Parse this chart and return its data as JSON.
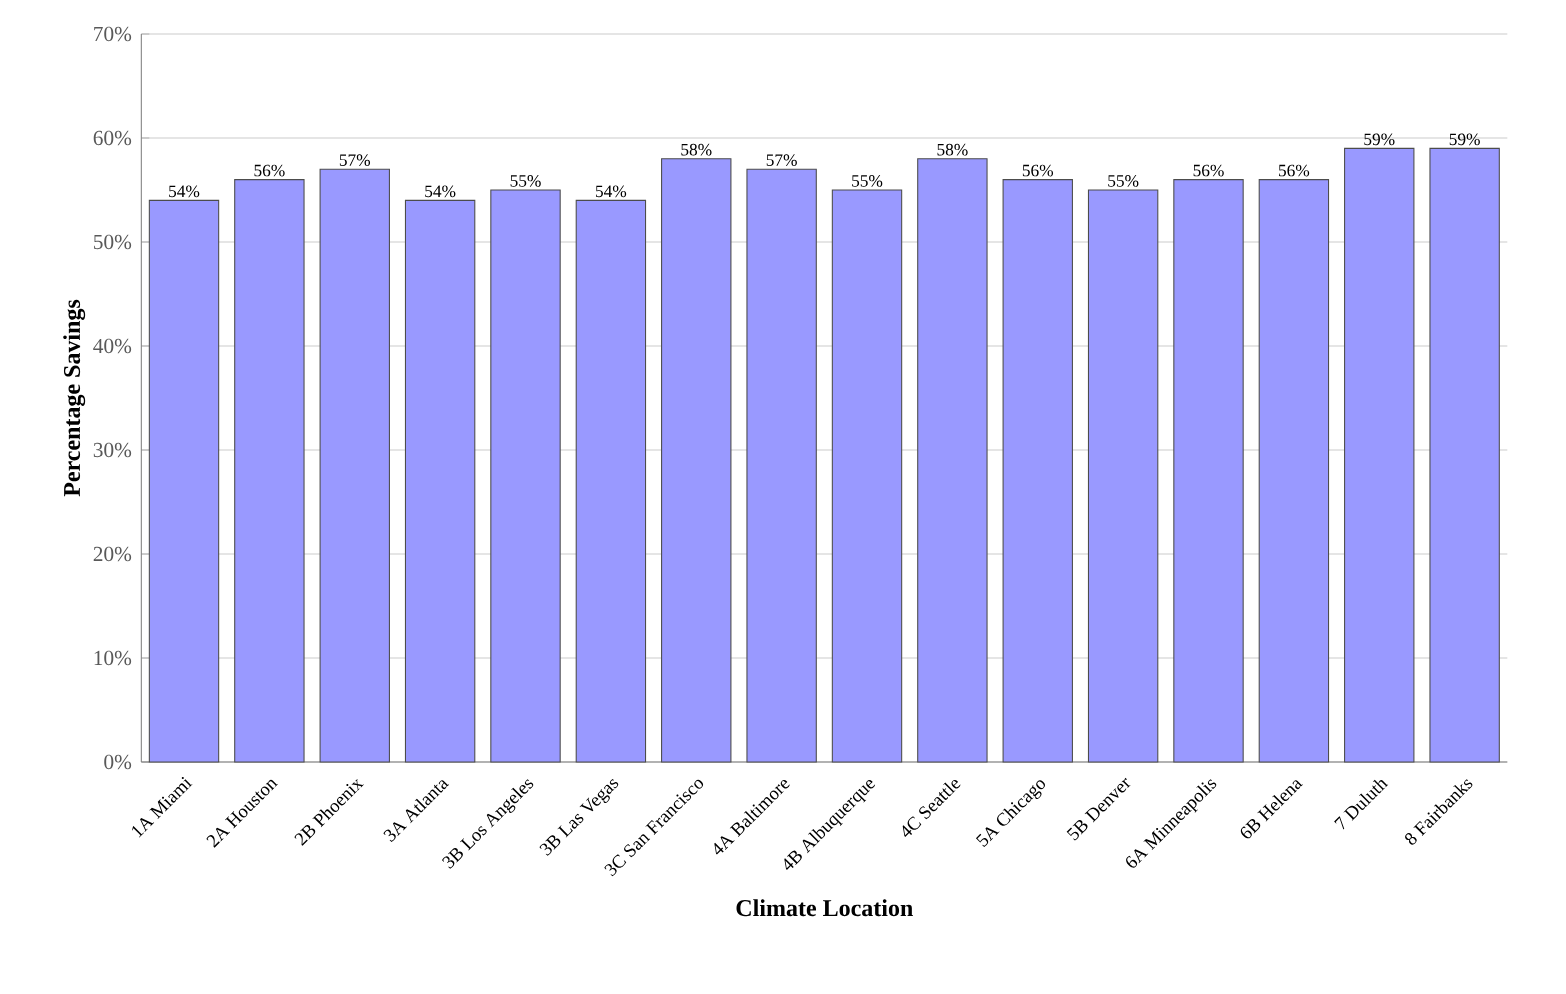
{
  "chart_data": {
    "type": "bar",
    "xlabel": "Climate Location",
    "ylabel": "Percentage Savings",
    "categories": [
      "1A Miami",
      "2A Houston",
      "2B Phoenix",
      "3A Atlanta",
      "3B Los Angeles",
      "3B Las Vegas",
      "3C San Francisco",
      "4A Baltimore",
      "4B Albuquerque",
      "4C Seattle",
      "5A Chicago",
      "5B Denver",
      "6A Minneapolis",
      "6B Helena",
      "7 Duluth",
      "8 Fairbanks"
    ],
    "values": [
      54,
      56,
      57,
      54,
      55,
      54,
      58,
      57,
      55,
      58,
      56,
      55,
      56,
      56,
      59,
      59
    ],
    "value_labels": [
      "54%",
      "56%",
      "57%",
      "54%",
      "55%",
      "54%",
      "58%",
      "57%",
      "55%",
      "58%",
      "56%",
      "55%",
      "56%",
      "56%",
      "59%",
      "59%"
    ],
    "color": "#9999ff",
    "ylim": [
      0,
      70
    ],
    "yticks": [
      {
        "value": 0,
        "label": "0%"
      },
      {
        "value": 10,
        "label": "10%"
      },
      {
        "value": 20,
        "label": "20%"
      },
      {
        "value": 30,
        "label": "30%"
      },
      {
        "value": 40,
        "label": "40%"
      },
      {
        "value": 50,
        "label": "50%"
      },
      {
        "value": 60,
        "label": "60%"
      },
      {
        "value": 70,
        "label": "70%"
      }
    ],
    "grid": "y"
  }
}
